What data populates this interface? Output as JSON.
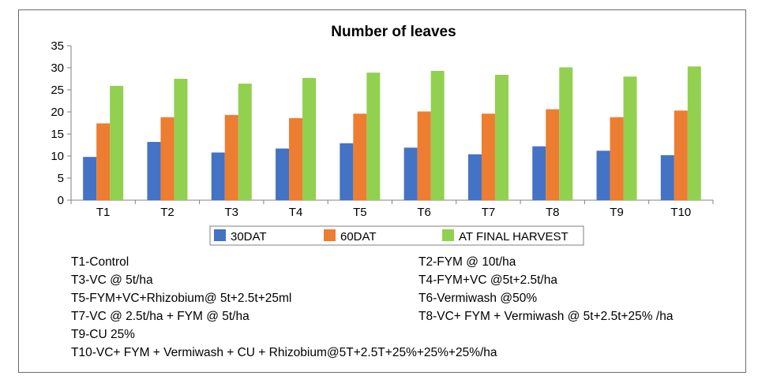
{
  "chart_data": {
    "type": "bar",
    "title": "Number of leaves",
    "categories": [
      "T1",
      "T2",
      "T3",
      "T4",
      "T5",
      "T6",
      "T7",
      "T8",
      "T9",
      "T10"
    ],
    "series": [
      {
        "name": "30DAT",
        "color": "#4472C4",
        "values": [
          9.8,
          13.2,
          10.8,
          11.7,
          12.9,
          11.9,
          10.4,
          12.2,
          11.2,
          10.2
        ]
      },
      {
        "name": "60DAT",
        "color": "#ED7D31",
        "values": [
          17.4,
          18.8,
          19.3,
          18.6,
          19.6,
          20.1,
          19.6,
          20.6,
          18.8,
          20.3
        ]
      },
      {
        "name": "AT FINAL HARVEST",
        "color": "#92D050",
        "values": [
          25.9,
          27.5,
          26.4,
          27.7,
          28.9,
          29.3,
          28.4,
          30.1,
          28.0,
          30.3
        ]
      }
    ],
    "y_ticks": [
      "0",
      "5",
      "10",
      "15",
      "20",
      "25",
      "30",
      "35"
    ],
    "ylim": [
      0,
      35
    ],
    "grid": false,
    "legend_position": "bottom"
  },
  "notes": {
    "left": [
      "T1-Control",
      "T3-VC @ 5t/ha",
      "T5-FYM+VC+Rhizobium@ 5t+2.5t+25ml",
      "T7-VC @ 2.5t/ha + FYM @ 5t/ha",
      "T9-CU 25%",
      "T10-VC+ FYM + Vermiwash + CU + Rhizobium@5T+2.5T+25%+25%+25%/ha"
    ],
    "right": [
      "T2-FYM @ 10t/ha",
      "T4-FYM+VC @5t+2.5t/ha",
      "T6-Vermiwash @50%",
      "T8-VC+ FYM  + Vermiwash @ 5t+2.5t+25% /ha"
    ]
  }
}
